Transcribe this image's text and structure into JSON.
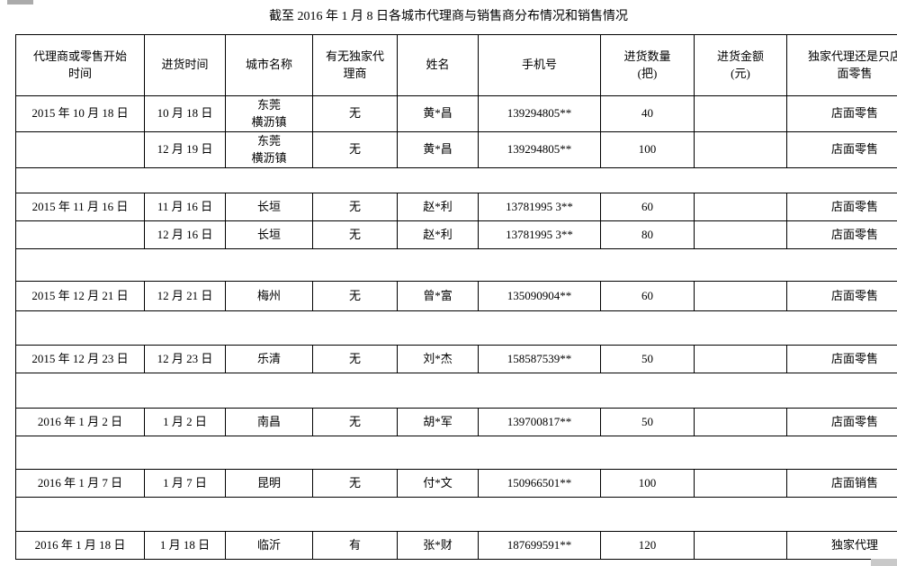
{
  "page": {
    "title": "截至 2016 年 1 月 8 日各城市代理商与销售商分布情况和销售情况"
  },
  "table": {
    "headers": [
      "代理商或零售开始\n时间",
      "进货时间",
      "城市名称",
      "有无独家代\n理商",
      "姓名",
      "手机号",
      "进货数量\n(把)",
      "进货金额\n(元)",
      "独家代理还是只店\n面零售"
    ],
    "rows": [
      {
        "kind": "data",
        "tall": true,
        "cells": [
          "2015 年 10 月 18 日",
          "10 月 18 日",
          "东莞\n横沥镇",
          "无",
          "黄*昌",
          "139294805**",
          "40",
          "",
          "店面零售"
        ]
      },
      {
        "kind": "data",
        "tall": true,
        "cells": [
          "",
          "12 月 19 日",
          "东莞\n横沥镇",
          "无",
          "黄*昌",
          "139294805**",
          "100",
          "",
          "店面零售"
        ]
      },
      {
        "kind": "spacer"
      },
      {
        "kind": "data",
        "tall": false,
        "cells": [
          "2015 年 11 月 16 日",
          "11 月 16 日",
          "长垣",
          "无",
          "赵*利",
          "13781995 3**",
          "60",
          "",
          "店面零售"
        ]
      },
      {
        "kind": "data",
        "tall": false,
        "cells": [
          "",
          "12 月 16 日",
          "长垣",
          "无",
          "赵*利",
          "13781995 3**",
          "80",
          "",
          "店面零售"
        ]
      },
      {
        "kind": "spacer"
      },
      {
        "kind": "data",
        "tall": false,
        "cells": [
          "2015 年 12 月 21 日",
          "12 月 21 日",
          "梅州",
          "无",
          "曾*富",
          "135090904**",
          "60",
          "",
          "店面零售"
        ]
      },
      {
        "kind": "spacer"
      },
      {
        "kind": "data",
        "tall": false,
        "cells": [
          "2015 年 12 月 23 日",
          "12 月 23 日",
          "乐清",
          "无",
          "刘*杰",
          "158587539**",
          "50",
          "",
          "店面零售"
        ]
      },
      {
        "kind": "spacer"
      },
      {
        "kind": "data",
        "tall": false,
        "cells": [
          "2016 年 1 月 2 日",
          "1 月 2 日",
          "南昌",
          "无",
          "胡*军",
          "139700817**",
          "50",
          "",
          "店面零售"
        ]
      },
      {
        "kind": "spacer"
      },
      {
        "kind": "data",
        "tall": false,
        "cells": [
          "2016 年 1 月 7 日",
          "1 月 7 日",
          "昆明",
          "无",
          "付*文",
          "150966501**",
          "100",
          "",
          "店面销售"
        ]
      },
      {
        "kind": "spacer"
      },
      {
        "kind": "data",
        "tall": false,
        "cells": [
          "2016 年 1 月 18 日",
          "1 月 18 日",
          "临沂",
          "有",
          "张*财",
          "187699591**",
          "120",
          "",
          "独家代理"
        ]
      }
    ]
  }
}
